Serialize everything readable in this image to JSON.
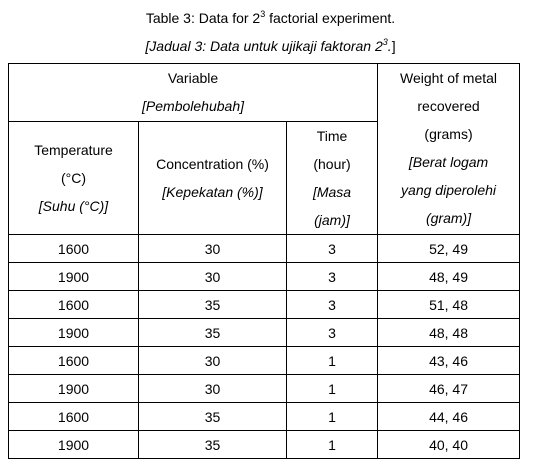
{
  "caption": {
    "english_prefix": "Table 3: Data for 2",
    "english_sup": "3",
    "english_suffix": " factorial experiment.",
    "malay_prefix": "[Jadual 3: Data untuk ujikaji faktoran 2",
    "malay_sup": "3",
    "malay_suffix": ".",
    "malay_close": "]"
  },
  "header": {
    "variable": "Variable",
    "variable_ms": "[Pembolehubah]",
    "weight_lines": [
      "Weight of metal",
      "recovered",
      "(grams)"
    ],
    "weight_ms_lines": [
      "[Berat logam",
      "yang diperolehi",
      "(gram)]"
    ],
    "temperature": "Temperature",
    "temperature_unit": "(°C)",
    "temperature_ms": "[Suhu (°C)]",
    "concentration": "Concentration (%)",
    "concentration_ms": "[Kepekatan (%)]",
    "time": "Time",
    "time_unit": "(hour)",
    "time_ms_lines": [
      "[Masa",
      "(jam)]"
    ]
  },
  "rows": [
    {
      "temperature": "1600",
      "concentration": "30",
      "time": "3",
      "weight": "52, 49"
    },
    {
      "temperature": "1900",
      "concentration": "30",
      "time": "3",
      "weight": "48, 49"
    },
    {
      "temperature": "1600",
      "concentration": "35",
      "time": "3",
      "weight": "51, 48"
    },
    {
      "temperature": "1900",
      "concentration": "35",
      "time": "3",
      "weight": "48, 48"
    },
    {
      "temperature": "1600",
      "concentration": "30",
      "time": "1",
      "weight": "43, 46"
    },
    {
      "temperature": "1900",
      "concentration": "30",
      "time": "1",
      "weight": "46, 47"
    },
    {
      "temperature": "1600",
      "concentration": "35",
      "time": "1",
      "weight": "44, 46"
    },
    {
      "temperature": "1900",
      "concentration": "35",
      "time": "1",
      "weight": "40, 40"
    }
  ]
}
